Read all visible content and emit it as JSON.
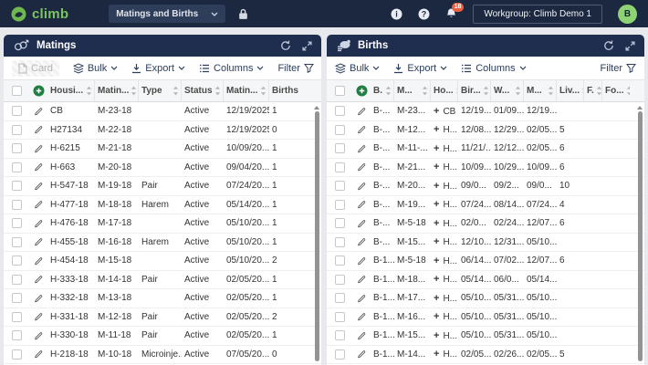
{
  "navbar": {
    "logo_text": "climb",
    "view_selector": "Matings and Births",
    "workgroup_label": "Workgroup: Climb Demo 1",
    "notification_count": "18",
    "avatar_initial": "B"
  },
  "colors": {
    "navbar_navy": "#1b2840",
    "panel_header_navy": "#1f2d4f",
    "brand_green": "#7cc462",
    "add_button_green": "#1d8040",
    "badge_orange": "#ee5f41",
    "avatar_green": "#8ed273"
  },
  "matings_panel": {
    "title": "Matings",
    "toolbar": {
      "card": "Card",
      "bulk": "Bulk",
      "export": "Export",
      "columns": "Columns",
      "filter": "Filter"
    },
    "columns": [
      "Housi...",
      "Matin...",
      "Type",
      "Status",
      "Matin...",
      "Births"
    ],
    "rows": [
      {
        "housing": "CB",
        "mating_id": "M-23-18",
        "type": "",
        "status": "Active",
        "mating_date": "12/19/2025",
        "births": "1"
      },
      {
        "housing": "H27134",
        "mating_id": "M-22-18",
        "type": "",
        "status": "Active",
        "mating_date": "12/19/2025",
        "births": "0"
      },
      {
        "housing": "H-6215",
        "mating_id": "M-21-18",
        "type": "",
        "status": "Active",
        "mating_date": "10/09/20...",
        "births": "1"
      },
      {
        "housing": "H-663",
        "mating_id": "M-20-18",
        "type": "",
        "status": "Active",
        "mating_date": "09/04/20...",
        "births": "1"
      },
      {
        "housing": "H-547-18",
        "mating_id": "M-19-18",
        "type": "Pair",
        "status": "Active",
        "mating_date": "07/24/20...",
        "births": "1"
      },
      {
        "housing": "H-477-18",
        "mating_id": "M-18-18",
        "type": "Harem",
        "status": "Active",
        "mating_date": "05/14/20...",
        "births": "1"
      },
      {
        "housing": "H-476-18",
        "mating_id": "M-17-18",
        "type": "",
        "status": "Active",
        "mating_date": "05/10/20...",
        "births": "1"
      },
      {
        "housing": "H-455-18",
        "mating_id": "M-16-18",
        "type": "Harem",
        "status": "Active",
        "mating_date": "05/10/20...",
        "births": "1"
      },
      {
        "housing": "H-454-18",
        "mating_id": "M-15-18",
        "type": "",
        "status": "Active",
        "mating_date": "05/10/20...",
        "births": "2"
      },
      {
        "housing": "H-333-18",
        "mating_id": "M-14-18",
        "type": "Pair",
        "status": "Active",
        "mating_date": "02/05/20...",
        "births": "1"
      },
      {
        "housing": "H-332-18",
        "mating_id": "M-13-18",
        "type": "",
        "status": "Active",
        "mating_date": "02/05/20...",
        "births": "1"
      },
      {
        "housing": "H-331-18",
        "mating_id": "M-12-18",
        "type": "Pair",
        "status": "Active",
        "mating_date": "02/05/20...",
        "births": "2"
      },
      {
        "housing": "H-330-18",
        "mating_id": "M-11-18",
        "type": "Pair",
        "status": "Active",
        "mating_date": "02/05/20...",
        "births": "1"
      },
      {
        "housing": "H-218-18",
        "mating_id": "M-10-18",
        "type": "Microinje...",
        "status": "Active",
        "mating_date": "07/05/20...",
        "births": "0"
      }
    ]
  },
  "births_panel": {
    "title": "Births",
    "toolbar": {
      "bulk": "Bulk",
      "export": "Export",
      "columns": "Columns",
      "filter": "Filter"
    },
    "columns": [
      "B.",
      "M...",
      "Ho...",
      "Bir...",
      "W...",
      "M...",
      "Liv...",
      "F.",
      "Fo..."
    ],
    "rows": [
      {
        "birth_id": "B-...",
        "mating_id": "M-23...",
        "housing": "CB",
        "birth_date": "12/19...",
        "wean_date": "01/09...",
        "mating_date": "12/19...",
        "live": "",
        "female": "",
        "foster": ""
      },
      {
        "birth_id": "B-...",
        "mating_id": "M-12...",
        "housing": "H...",
        "birth_date": "12/08...",
        "wean_date": "12/29...",
        "mating_date": "02/05...",
        "live": "5",
        "female": "",
        "foster": ""
      },
      {
        "birth_id": "B-...",
        "mating_id": "M-11-...",
        "housing": "H...",
        "birth_date": "11/21/...",
        "wean_date": "12/12...",
        "mating_date": "02/05...",
        "live": "6",
        "female": "",
        "foster": ""
      },
      {
        "birth_id": "B-...",
        "mating_id": "M-21...",
        "housing": "H...",
        "birth_date": "10/09...",
        "wean_date": "10/29...",
        "mating_date": "10/09...",
        "live": "6",
        "female": "",
        "foster": ""
      },
      {
        "birth_id": "B-...",
        "mating_id": "M-20...",
        "housing": "H...",
        "birth_date": "09/0...",
        "wean_date": "09/2...",
        "mating_date": "09/0...",
        "live": "10",
        "female": "",
        "foster": ""
      },
      {
        "birth_id": "B-...",
        "mating_id": "M-19...",
        "housing": "H...",
        "birth_date": "07/24...",
        "wean_date": "08/14...",
        "mating_date": "07/24...",
        "live": "4",
        "female": "",
        "foster": ""
      },
      {
        "birth_id": "B-...",
        "mating_id": "M-5-18",
        "housing": "H...",
        "birth_date": "02/0...",
        "wean_date": "02/24...",
        "mating_date": "12/07...",
        "live": "6",
        "female": "",
        "foster": ""
      },
      {
        "birth_id": "B-...",
        "mating_id": "M-15...",
        "housing": "H...",
        "birth_date": "12/10...",
        "wean_date": "12/31...",
        "mating_date": "05/10...",
        "live": "",
        "female": "",
        "foster": ""
      },
      {
        "birth_id": "B-1...",
        "mating_id": "M-5-18",
        "housing": "H...",
        "birth_date": "06/14...",
        "wean_date": "07/02...",
        "mating_date": "12/07...",
        "live": "6",
        "female": "",
        "foster": ""
      },
      {
        "birth_id": "B-1...",
        "mating_id": "M-18...",
        "housing": "H...",
        "birth_date": "05/14...",
        "wean_date": "06/0...",
        "mating_date": "05/14...",
        "live": "",
        "female": "",
        "foster": ""
      },
      {
        "birth_id": "B-1...",
        "mating_id": "M-17...",
        "housing": "H...",
        "birth_date": "05/10...",
        "wean_date": "05/31...",
        "mating_date": "05/10...",
        "live": "",
        "female": "",
        "foster": ""
      },
      {
        "birth_id": "B-1...",
        "mating_id": "M-16...",
        "housing": "H...",
        "birth_date": "05/10...",
        "wean_date": "05/31...",
        "mating_date": "05/10...",
        "live": "",
        "female": "",
        "foster": ""
      },
      {
        "birth_id": "B-1...",
        "mating_id": "M-15...",
        "housing": "H...",
        "birth_date": "05/10...",
        "wean_date": "05/31...",
        "mating_date": "05/10...",
        "live": "",
        "female": "",
        "foster": ""
      },
      {
        "birth_id": "B-1...",
        "mating_id": "M-14...",
        "housing": "H...",
        "birth_date": "02/05...",
        "wean_date": "02/26...",
        "mating_date": "02/05...",
        "live": "5",
        "female": "",
        "foster": ""
      }
    ]
  }
}
